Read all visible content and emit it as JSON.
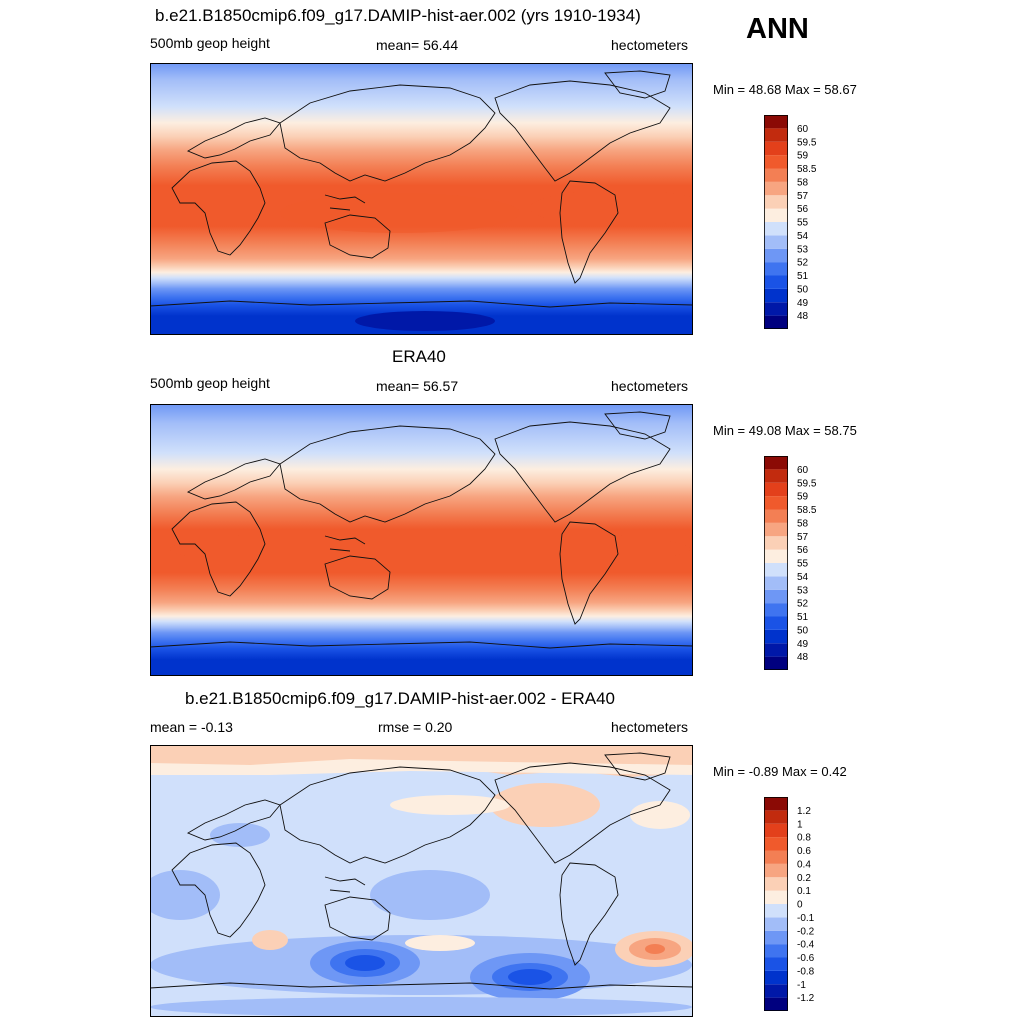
{
  "season": "ANN",
  "panels": [
    {
      "title": "b.e21.B1850cmip6.f09_g17.DAMIP-hist-aer.002 (yrs 1910-1934)",
      "left_label": "500mb geop height",
      "center_label": "mean=  56.44",
      "right_label": "hectometers",
      "minmax": "Min =  48.68 Max =  58.67",
      "colorbar": {
        "colors": [
          "#00007f",
          "#0018a8",
          "#0033cc",
          "#1a53e6",
          "#3f74f0",
          "#6e97f5",
          "#a2bdf8",
          "#d0e0fb",
          "#fdeee0",
          "#fbd0b6",
          "#f7a581",
          "#f37f54",
          "#f05a2c",
          "#e3401b",
          "#c22b0e",
          "#8b0a05"
        ],
        "labels": [
          "48",
          "49",
          "50",
          "51",
          "52",
          "53",
          "54",
          "55",
          "56",
          "57",
          "58",
          "58.5",
          "59",
          "59.5",
          "60"
        ]
      }
    },
    {
      "title": "ERA40",
      "left_label": "500mb geop height",
      "center_label": "mean=  56.57",
      "right_label": "hectometers",
      "minmax": "Min =  49.08 Max =  58.75",
      "colorbar": {
        "colors": [
          "#00007f",
          "#0018a8",
          "#0033cc",
          "#1a53e6",
          "#3f74f0",
          "#6e97f5",
          "#a2bdf8",
          "#d0e0fb",
          "#fdeee0",
          "#fbd0b6",
          "#f7a581",
          "#f37f54",
          "#f05a2c",
          "#e3401b",
          "#c22b0e",
          "#8b0a05"
        ],
        "labels": [
          "48",
          "49",
          "50",
          "51",
          "52",
          "53",
          "54",
          "55",
          "56",
          "57",
          "58",
          "58.5",
          "59",
          "59.5",
          "60"
        ]
      }
    },
    {
      "title": "b.e21.B1850cmip6.f09_g17.DAMIP-hist-aer.002 - ERA40",
      "left_label": "mean =  -0.13",
      "center_label": "rmse =   0.20",
      "right_label": "hectometers",
      "minmax": "Min =  -0.89 Max =   0.42",
      "colorbar": {
        "colors": [
          "#00007f",
          "#0018a8",
          "#0033cc",
          "#1a53e6",
          "#3f74f0",
          "#6e97f5",
          "#a2bdf8",
          "#d0e0fb",
          "#fdeee0",
          "#fbd0b6",
          "#f7a581",
          "#f37f54",
          "#f05a2c",
          "#e3401b",
          "#c22b0e",
          "#8b0a05"
        ],
        "labels": [
          "-1.2",
          "-1",
          "-0.8",
          "-0.6",
          "-0.4",
          "-0.2",
          "-0.1",
          "0",
          "0.1",
          "0.2",
          "0.4",
          "0.6",
          "0.8",
          "1",
          "1.2"
        ]
      }
    }
  ]
}
